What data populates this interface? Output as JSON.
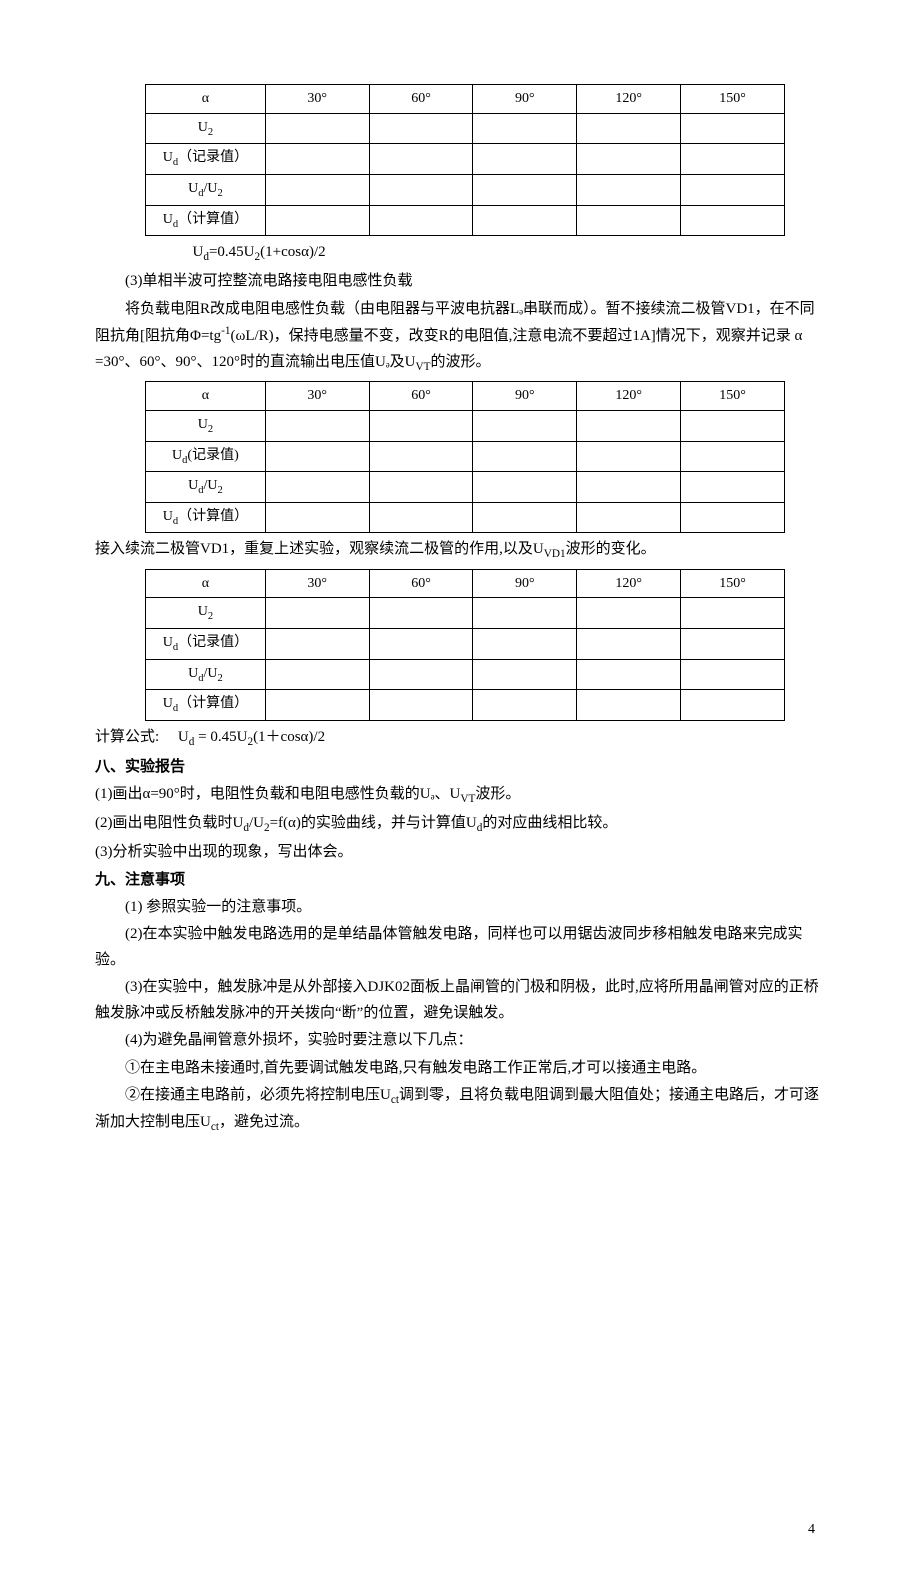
{
  "tables": {
    "angleHeaders": [
      "α",
      "30°",
      "60°",
      "90°",
      "120°",
      "150°"
    ],
    "rowLabels": {
      "u2": "U₂",
      "udRecord": "Uₔ（记录值）",
      "udU2": "Uₔ/U₂",
      "udCalc": "Uₔ（计算值）",
      "udRecordB": "Uₔ(记录值)"
    }
  },
  "formula1": "Uₔ=0.45U₂(1+cosα)/2",
  "section3Title": "(3)单相半波可控整流电路接电阻电感性负载",
  "para1a": "将负载电阻R改成电阻电感性负载（由电阻器与平波电抗器Lₔ串联而成）。暂不接续流二极管VD1，在不同阻抗角[阻抗角Φ=tg",
  "para1_sup": "-1",
  "para1b": "(ωL/R)，保持电感量不变，改变R的电阻值,注意电流不要超过1A]情况下，观察并记录 α =30°、60°、90°、120°时的直流输出电压值Uₔ及U",
  "para1_vt": "VT",
  "para1c": "的波形。",
  "para2a": "接入续流二极管VD1，重复上述实验，观察续流二极管的作用,以及U",
  "para2_vd1": "VD1",
  "para2b": "波形的变化。",
  "formula2Label": "计算公式:",
  "formula2": "Uₔ = 0.45U₂(1＋cosα)/2",
  "section8": "八、实验报告",
  "r1a": "(1)画出α=90°时，电阻性负载和电阻电感性负载的Uₔ、U",
  "r1_vt": "VT",
  "r1b": "波形。",
  "r2": "(2)画出电阻性负载时Uₔ/U₂=f(α)的实验曲线，并与计算值Uₔ的对应曲线相比较。",
  "r3": "(3)分析实验中出现的现象，写出体会。",
  "section9": "九、注意事项",
  "n1": "(1) 参照实验一的注意事项。",
  "n2": "(2)在本实验中触发电路选用的是单结晶体管触发电路，同样也可以用锯齿波同步移相触发电路来完成实验。",
  "n3": "(3)在实验中，触发脉冲是从外部接入DJK02面板上晶闸管的门极和阴极，此时,应将所用晶闸管对应的正桥触发脉冲或反桥触发脉冲的开关拨向“断”的位置，避免误触发。",
  "n4": "(4)为避免晶闸管意外损坏，实验时要注意以下几点：",
  "n4a": "①在主电路未接通时,首先要调试触发电路,只有触发电路工作正常后,才可以接通主电路。",
  "n4b_a": "②在接通主电路前，必须先将控制电压U",
  "n4b_ct": "ct",
  "n4b_b": "调到零，且将负载电阻调到最大阻值处；接通主电路后，才可逐渐加大控制电压U",
  "n4b_c": "，避免过流。",
  "pageNumber": "4"
}
